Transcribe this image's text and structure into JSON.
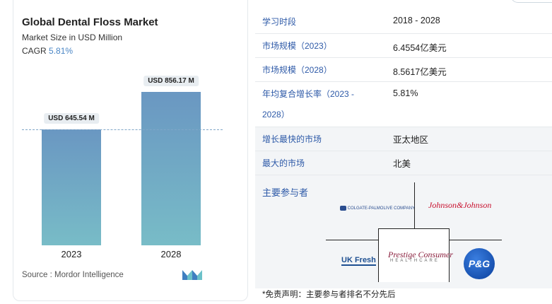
{
  "chart_card": {
    "title": "Global Dental Floss Market",
    "subtitle": "Market Size in USD Million",
    "cagr_label": "CAGR",
    "cagr_value": "5.81%",
    "source": "Source : Mordor Intelligence"
  },
  "chart_data": {
    "type": "bar",
    "categories": [
      "2023",
      "2028"
    ],
    "values": [
      645.54,
      856.17
    ],
    "value_labels": [
      "USD 645.54 M",
      "USD 856.17 M"
    ],
    "title": "Global Dental Floss Market",
    "ylabel": "Market Size in USD Million",
    "bar_gradient": [
      "#6a97c2",
      "#78bcc7"
    ]
  },
  "table": {
    "rows": [
      {
        "label": "学习时段",
        "value": "2018 - 2028"
      },
      {
        "label": "市场规模（2023）",
        "value": "6.4554亿美元"
      },
      {
        "label": "市场规模（2028）",
        "value": "8.5617亿美元"
      },
      {
        "label": "年均复合增长率（2023 -",
        "label2": "2028）",
        "value": "5.81%"
      },
      {
        "label": "增长最快的市场",
        "value": "亚太地区"
      },
      {
        "label": "最大的市场",
        "value": "北美"
      }
    ]
  },
  "players": {
    "title": "主要参与者",
    "logos": [
      "COLGATE-PALMOLIVE COMPANY",
      "Johnson&Johnson",
      "UK Fresh",
      "Prestige Consumer",
      "HEALTHCARE",
      "P&G"
    ]
  },
  "disclaimer": "*免责声明：主要参与者排名不分先后",
  "colors": {
    "label_blue": "#2e5aa8",
    "accent": "#4a86c5"
  }
}
